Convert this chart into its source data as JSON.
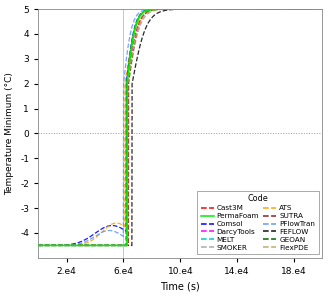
{
  "title": "",
  "xlabel": "Time (s)",
  "ylabel": "Temperature Minimum (°C)",
  "xlim": [
    0,
    200000
  ],
  "ylim": [
    -5,
    5
  ],
  "yticks": [
    -4,
    -3,
    -2,
    -1,
    0,
    1,
    2,
    3,
    4,
    5
  ],
  "xticks": [
    20000,
    60000,
    100000,
    140000,
    180000
  ],
  "xticklabels": [
    "2.e4",
    "6.e4",
    "10.e4",
    "14.e4",
    "18.e4"
  ],
  "hline_y": 0,
  "vline_x": 60000,
  "legend_title": "Code",
  "codes_left": [
    "Cast3M",
    "PermaFoam",
    "Comsol",
    "DarcyTools",
    "MELT",
    "SMOKER"
  ],
  "codes_right": [
    "ATS",
    "SUTRA",
    "PFlowTran",
    "FEFLOW",
    "GEOAN",
    "FlexPDE"
  ],
  "colors_left": [
    "#FF0000",
    "#00EE00",
    "#0000FF",
    "#FF00FF",
    "#00CCCC",
    "#AAAAAA"
  ],
  "colors_right": [
    "#FFA500",
    "#8B2020",
    "#6699FF",
    "#111111",
    "#006400",
    "#C8A870"
  ],
  "background_color": "#ffffff"
}
